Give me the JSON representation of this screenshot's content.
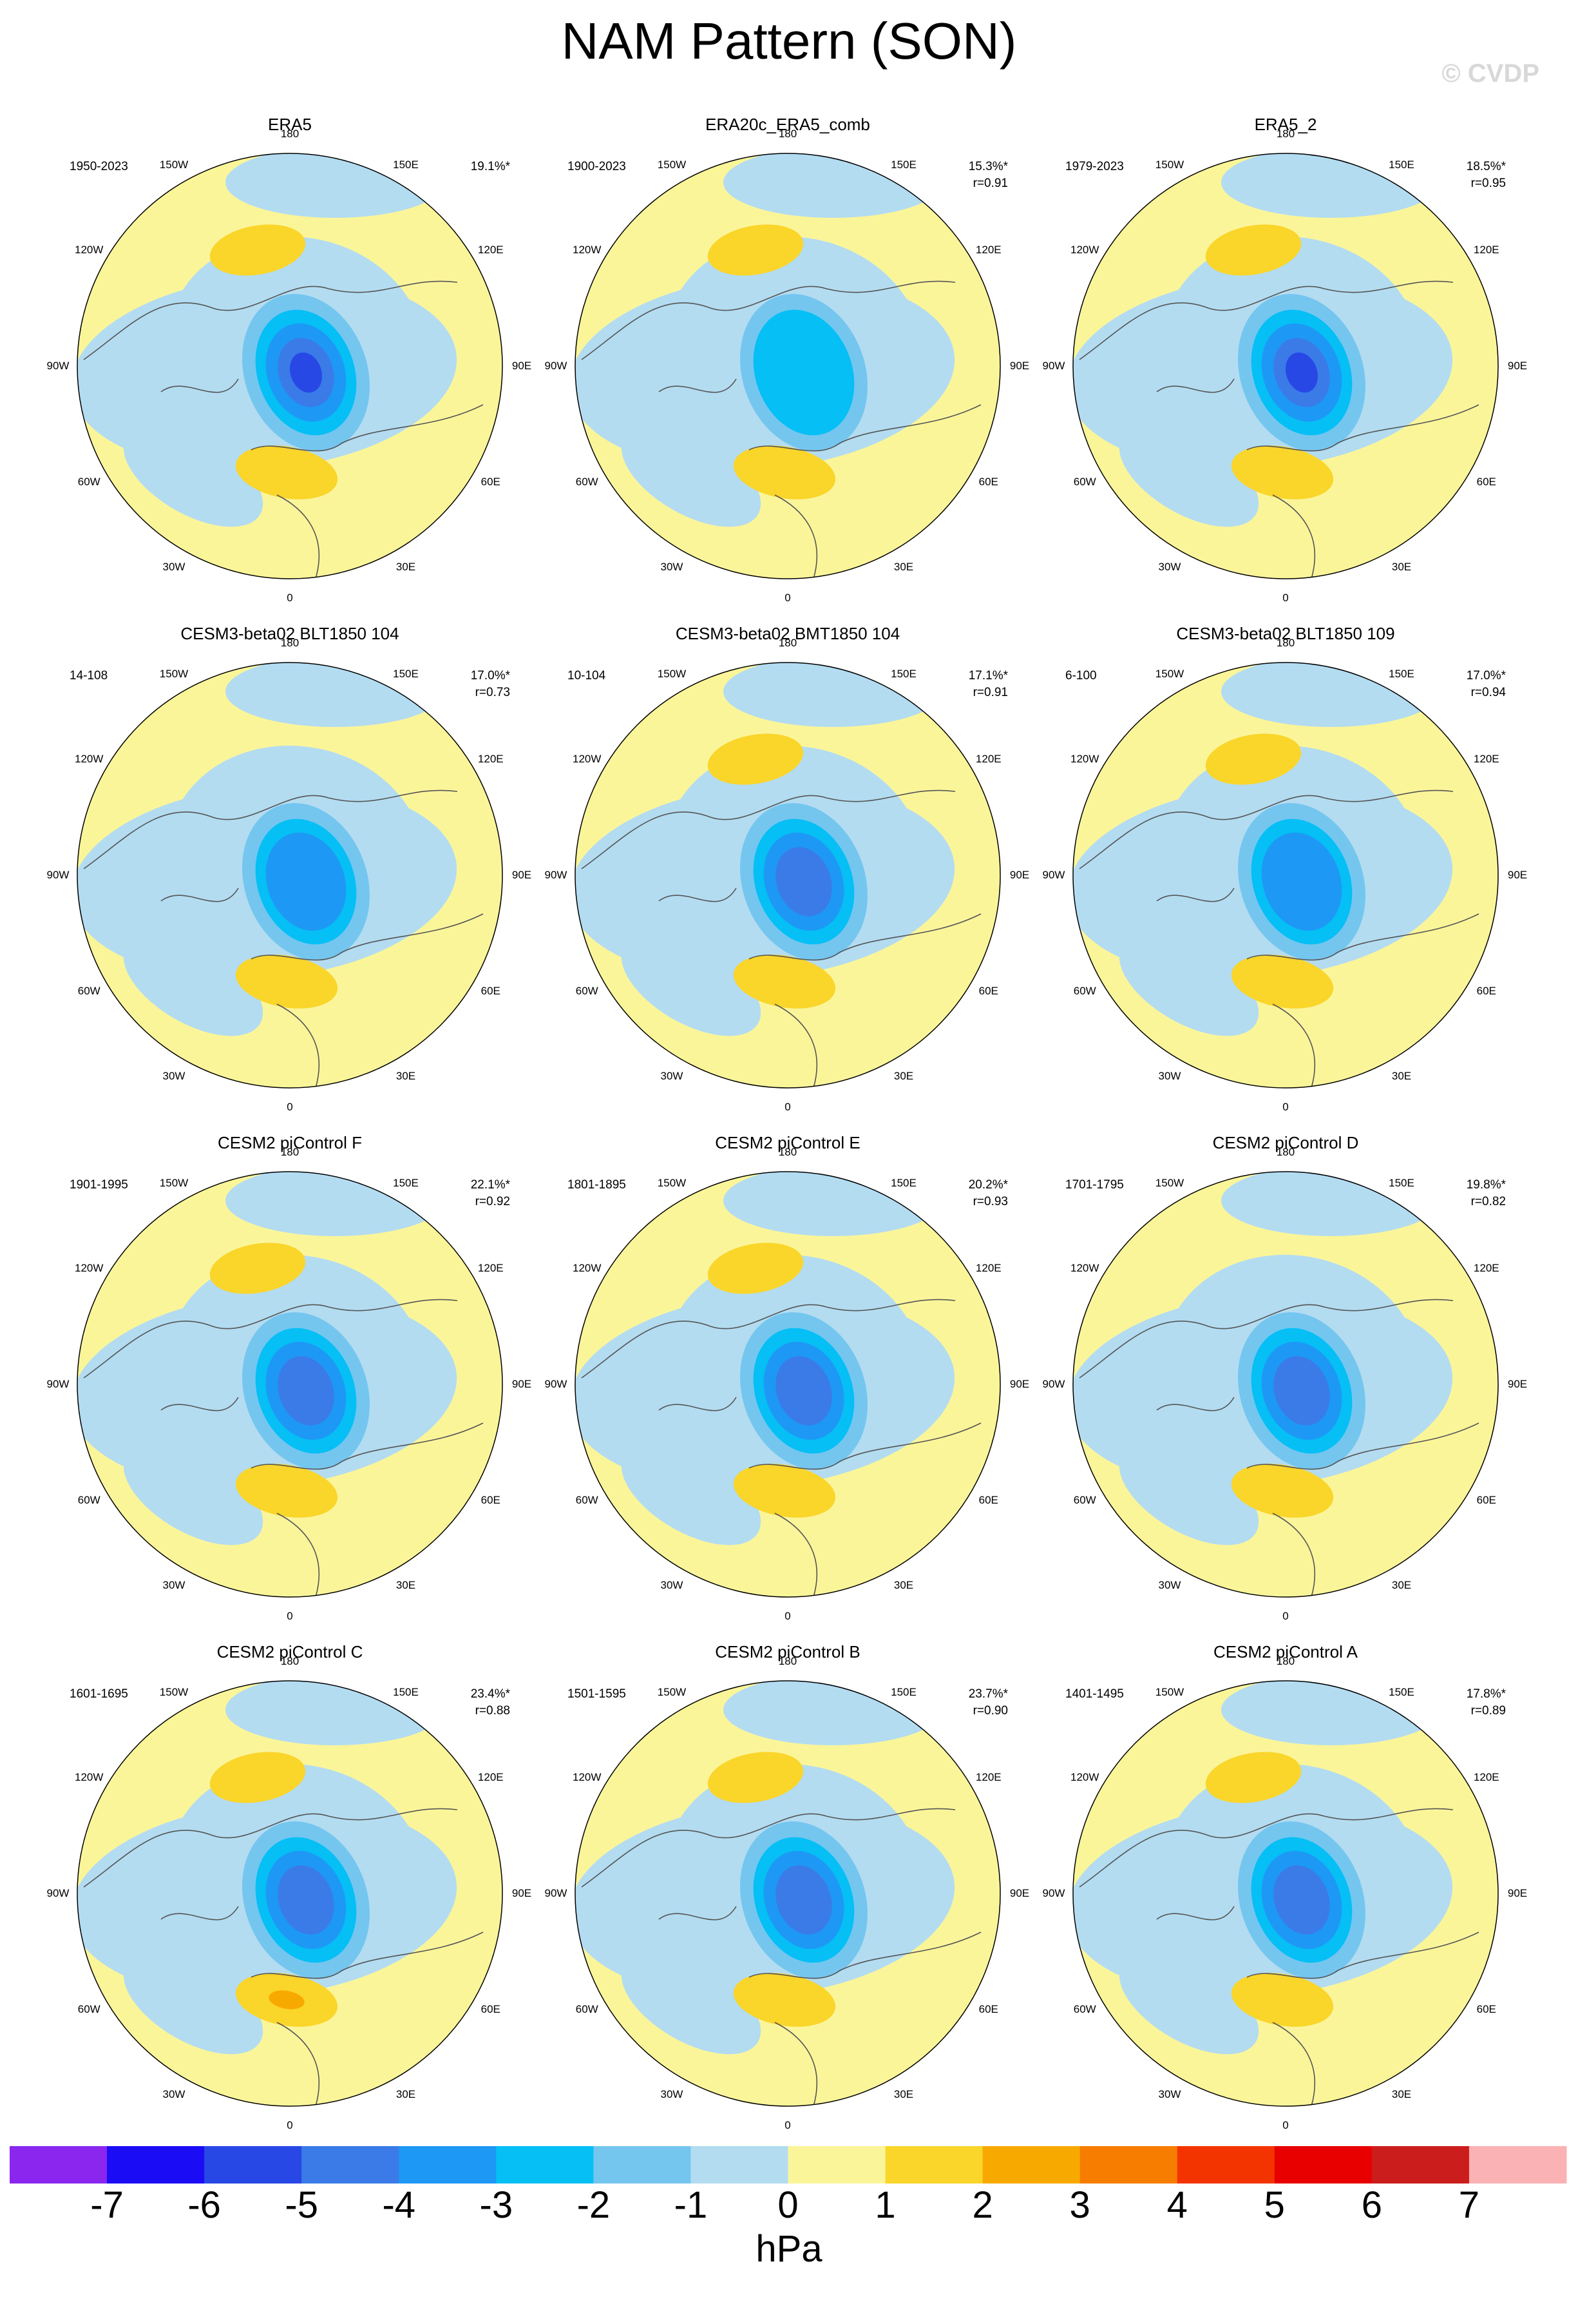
{
  "title": "NAM Pattern (SON)",
  "watermark": "© CVDP",
  "lon_labels": [
    "180",
    "150E",
    "120E",
    "90E",
    "60E",
    "30E",
    "0",
    "30W",
    "60W",
    "90W",
    "120W",
    "150W"
  ],
  "panels": [
    {
      "title": "ERA5",
      "period": "1950-2023",
      "pct": "19.1%*",
      "corr": "",
      "core": -5.2,
      "atl": 1.4,
      "pac": 1.5
    },
    {
      "title": "ERA20c_ERA5_comb",
      "period": "1900-2023",
      "pct": "15.3%*",
      "corr": "r=0.91",
      "core": -3.4,
      "atl": 1.3,
      "pac": 1.1
    },
    {
      "title": "ERA5_2",
      "period": "1979-2023",
      "pct": "18.5%*",
      "corr": "r=0.95",
      "core": -5.1,
      "atl": 1.2,
      "pac": 1.4
    },
    {
      "title": "CESM3-beta02 BLT1850 104",
      "period": "14-108",
      "pct": "17.0%*",
      "corr": "r=0.73",
      "core": -3.5,
      "atl": 1.5,
      "pac": 0.5
    },
    {
      "title": "CESM3-beta02 BMT1850 104",
      "period": "10-104",
      "pct": "17.1%*",
      "corr": "r=0.91",
      "core": -4.6,
      "atl": 1.1,
      "pac": 1.2
    },
    {
      "title": "CESM3-beta02 BLT1850 109",
      "period": "6-100",
      "pct": "17.0%*",
      "corr": "r=0.94",
      "core": -3.8,
      "atl": 1.2,
      "pac": 1.6
    },
    {
      "title": "CESM2 piControl F",
      "period": "1901-1995",
      "pct": "22.1%*",
      "corr": "r=0.92",
      "core": -4.9,
      "atl": 1.6,
      "pac": 1.3
    },
    {
      "title": "CESM2 piControl E",
      "period": "1801-1895",
      "pct": "20.2%*",
      "corr": "r=0.93",
      "core": -4.8,
      "atl": 1.5,
      "pac": 1.2
    },
    {
      "title": "CESM2 piControl D",
      "period": "1701-1795",
      "pct": "19.8%*",
      "corr": "r=0.82",
      "core": -4.7,
      "atl": 1.5,
      "pac": 0.6
    },
    {
      "title": "CESM2 piControl C",
      "period": "1601-1695",
      "pct": "23.4%*",
      "corr": "r=0.88",
      "core": -4.5,
      "atl": 2.3,
      "pac": 1.6
    },
    {
      "title": "CESM2 piControl B",
      "period": "1501-1595",
      "pct": "23.7%*",
      "corr": "r=0.90",
      "core": -4.6,
      "atl": 1.5,
      "pac": 1.5
    },
    {
      "title": "CESM2 piControl A",
      "period": "1401-1495",
      "pct": "17.8%*",
      "corr": "r=0.89",
      "core": -4.6,
      "atl": 1.6,
      "pac": 1.1
    }
  ],
  "colorbar": {
    "units": "hPa",
    "ticks": [
      "-7",
      "-6",
      "-5",
      "-4",
      "-3",
      "-2",
      "-1",
      "0",
      "1",
      "2",
      "3",
      "4",
      "5",
      "6",
      "7"
    ],
    "colors": [
      "#8a26ee",
      "#1a0cf5",
      "#2848e6",
      "#3a7be8",
      "#1e98f5",
      "#05bff5",
      "#74c6ef",
      "#b3dcf1",
      "#fbf59a",
      "#fad52a",
      "#f8a900",
      "#f67d00",
      "#f43400",
      "#e80000",
      "#cc1d1d",
      "#fbb2b4"
    ]
  }
}
